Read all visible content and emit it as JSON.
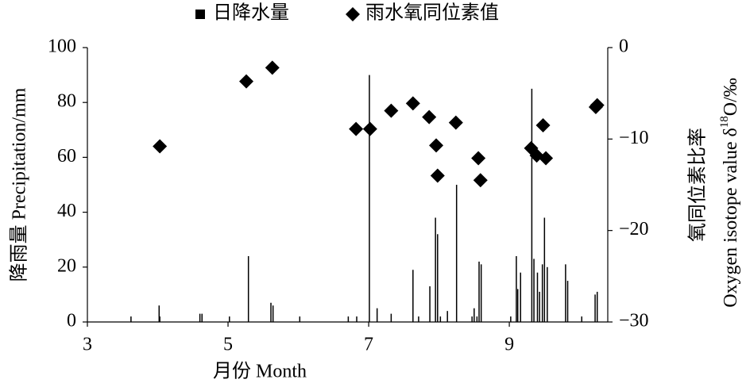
{
  "chart_data": {
    "type": "combo",
    "xlabel": "月份 Month",
    "ylabel": "降雨量 Precipitation/mm",
    "y2label": [
      "氧同位素比率",
      "Oxygen isotope value δ",
      "18",
      "O/‰"
    ],
    "xlim": [
      3,
      10.4
    ],
    "xticks": [
      3,
      5,
      7,
      9
    ],
    "ylim": [
      0,
      100
    ],
    "yticks": [
      0,
      20,
      40,
      60,
      80,
      100
    ],
    "y2lim": [
      -30,
      0
    ],
    "y2ticks": [
      {
        "value": -30,
        "label": "−30"
      },
      {
        "value": -20,
        "label": "−20"
      },
      {
        "value": -10,
        "label": "−10"
      },
      0
    ],
    "legend": "top",
    "series": [
      {
        "name": "日降水量",
        "type": "bar",
        "color": "#000000",
        "x": [
          3.62,
          4.02,
          4.03,
          4.6,
          4.63,
          5.02,
          5.29,
          5.61,
          5.64,
          6.02,
          6.71,
          6.83,
          7.01,
          7.12,
          7.32,
          7.63,
          7.71,
          7.87,
          7.95,
          7.98,
          8.02,
          8.12,
          8.25,
          8.47,
          8.5,
          8.54,
          8.57,
          8.6,
          9.02,
          9.1,
          9.12,
          9.16,
          9.32,
          9.35,
          9.4,
          9.43,
          9.47,
          9.5,
          9.54,
          9.8,
          9.83,
          10.03,
          10.22,
          10.25
        ],
        "values": [
          2,
          6,
          2,
          3,
          3,
          2,
          24,
          7,
          6,
          2,
          2,
          2,
          90,
          5,
          3,
          19,
          2,
          13,
          38,
          32,
          2,
          4,
          50,
          2,
          5,
          2,
          22,
          21,
          2,
          24,
          12,
          18,
          85,
          23,
          18,
          11,
          21,
          38,
          20,
          21,
          15,
          2,
          10,
          11
        ]
      },
      {
        "name": "雨水氧同位素值",
        "type": "scatter",
        "axis": "y2",
        "color": "#000000",
        "x": [
          4.03,
          5.26,
          5.63,
          6.82,
          7.02,
          7.32,
          7.63,
          7.86,
          7.96,
          7.98,
          8.24,
          8.56,
          8.59,
          9.31,
          9.39,
          9.48,
          9.52,
          10.23,
          10.25
        ],
        "values": [
          -10.8,
          -3.7,
          -2.2,
          -8.9,
          -8.9,
          -6.9,
          -6.1,
          -7.6,
          -10.7,
          -14.0,
          -8.2,
          -12.1,
          -14.5,
          -11.0,
          -11.8,
          -8.5,
          -12.1,
          -6.5,
          -6.3
        ]
      }
    ]
  }
}
